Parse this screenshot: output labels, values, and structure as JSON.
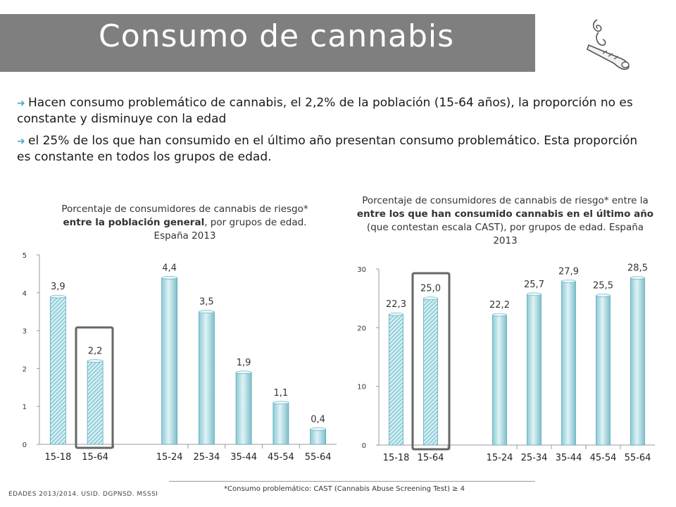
{
  "header": {
    "title": "Consumo de cannabis"
  },
  "bullets": [
    "Hacen consumo problemático de cannabis, el 2,2% de la población (15-64 años), la proporción no es constante y disminuye con la edad",
    "el 25% de los que han consumido en el último año presentan consumo problemático. Esta proporción es constante en todos los grupos de edad."
  ],
  "chart1_title": {
    "pre": "Porcentaje de consumidores de cannabis de riesgo* ",
    "bold": "entre la población general",
    "post": ", por grupos de edad. España 2013"
  },
  "chart2_title": {
    "pre": "Porcentaje de consumidores de cannabis de riesgo* entre la ",
    "bold": "entre los que han consumido cannabis en el último año",
    "post": " (que contestan escala CAST), por grupos de edad. España 2013"
  },
  "footer": {
    "source": "EDADES 2013/2014. USID. DGPNSD. MSSSI",
    "note": "*Consumo problemático: CAST (Cannabis Abuse Screening Test) ≥ 4"
  },
  "colors": {
    "bar": "#a9dde6",
    "bar_edge": "#5aa9b8",
    "highlight_box": "#666666",
    "title_bg": "#7f7f7f"
  },
  "chart_data": [
    {
      "type": "bar",
      "categories": [
        "15-18",
        "15-64",
        "15-24",
        "25-34",
        "35-44",
        "45-54",
        "55-64"
      ],
      "values": [
        3.9,
        2.2,
        4.4,
        3.5,
        1.9,
        1.1,
        0.4
      ],
      "data_labels": [
        "3,9",
        "2,2",
        "4,4",
        "3,5",
        "1,9",
        "1,1",
        "0,4"
      ],
      "hatched": [
        true,
        true,
        false,
        false,
        false,
        false,
        false
      ],
      "highlighted": "15-64",
      "ylim": [
        0,
        5
      ],
      "yticks": [
        0,
        1,
        2,
        3,
        4,
        5
      ],
      "ytick_labels": [
        "0",
        "1",
        "2",
        "3",
        "4",
        "5"
      ],
      "xlabel": "",
      "ylabel": ""
    },
    {
      "type": "bar",
      "categories": [
        "15-18",
        "15-64",
        "15-24",
        "25-34",
        "35-44",
        "45-54",
        "55-64"
      ],
      "values": [
        22.3,
        25.0,
        22.2,
        25.7,
        27.9,
        25.5,
        28.5
      ],
      "data_labels": [
        "22,3",
        "25,0",
        "22,2",
        "25,7",
        "27,9",
        "25,5",
        "28,5"
      ],
      "hatched": [
        true,
        true,
        false,
        false,
        false,
        false,
        false
      ],
      "highlighted": "15-64",
      "ylim": [
        0,
        30
      ],
      "yticks": [
        0,
        10,
        20,
        30
      ],
      "ytick_labels": [
        "0",
        "10",
        "20",
        "30"
      ],
      "xlabel": "",
      "ylabel": ""
    }
  ]
}
